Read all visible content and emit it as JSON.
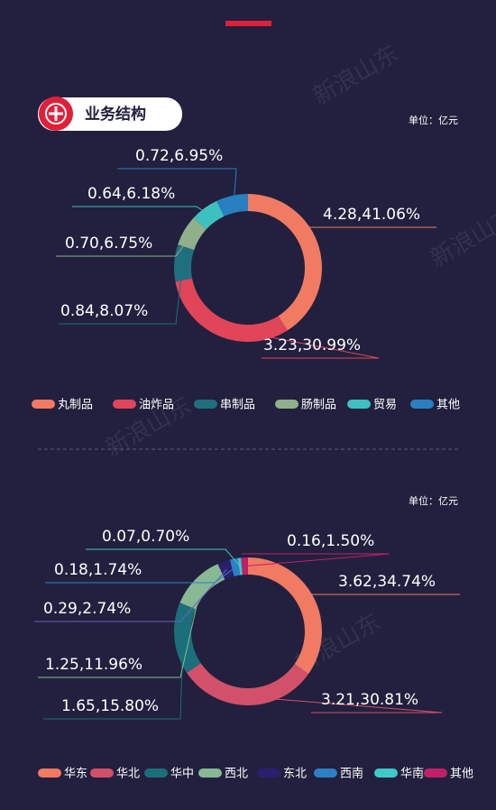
{
  "watermark": "新浪山东",
  "chart_data": [
    {
      "type": "donut",
      "title": "业务结构",
      "unit": "单位：亿元",
      "categories": [
        "丸制品",
        "油炸品",
        "串制品",
        "肠制品",
        "贸易",
        "其他"
      ],
      "values": [
        4.28,
        3.23,
        0.84,
        0.7,
        0.64,
        0.72
      ],
      "percents": [
        41.06,
        30.99,
        8.07,
        6.75,
        6.18,
        6.95
      ],
      "value_labels": [
        "4.28,41.06%",
        "3.23,30.99%",
        "0.84,8.07%",
        "0.70,6.75%",
        "0.64,6.18%",
        "0.72,6.95%"
      ],
      "colors": [
        "#f07a62",
        "#e0455a",
        "#1f6f7f",
        "#8fb08a",
        "#3fc0c0",
        "#2a7fc0"
      ]
    },
    {
      "type": "donut",
      "unit": "单位：亿元",
      "categories": [
        "华东",
        "华北",
        "华中",
        "西北",
        "东北",
        "西南",
        "华南",
        "其他"
      ],
      "values": [
        3.62,
        3.21,
        1.65,
        1.25,
        0.29,
        0.18,
        0.07,
        0.16
      ],
      "percents": [
        34.74,
        30.81,
        15.8,
        11.96,
        2.74,
        1.74,
        0.7,
        1.5
      ],
      "value_labels": [
        "3.62,34.74%",
        "3.21,30.81%",
        "1.65,15.80%",
        "1.25,11.96%",
        "0.29,2.74%",
        "0.18,1.74%",
        "0.07,0.70%",
        "0.16,1.50%"
      ],
      "colors": [
        "#f07a62",
        "#d2506a",
        "#1b6f7a",
        "#88b894",
        "#2a1f6e",
        "#2f7fc4",
        "#40c8c8",
        "#c0206a"
      ]
    }
  ]
}
